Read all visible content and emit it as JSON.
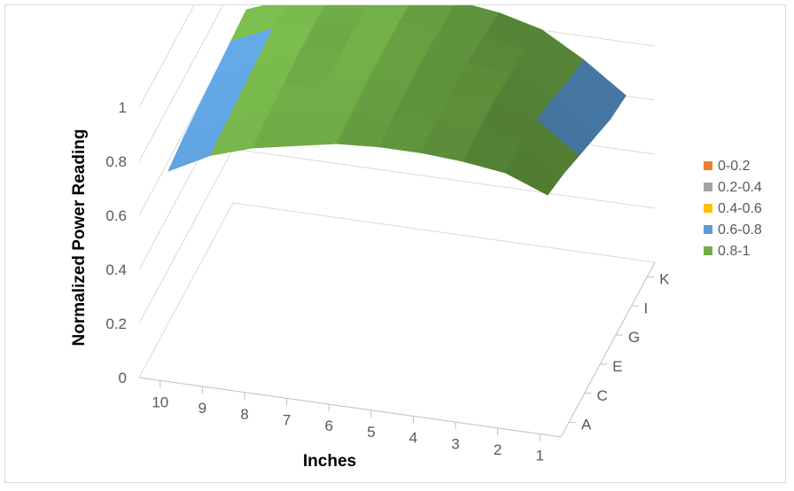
{
  "chart_data": {
    "type": "surface",
    "title": "",
    "xlabel": "Inches",
    "ylabel": "Normalized Power Reading",
    "x_categories": [
      "10",
      "9",
      "8",
      "7",
      "6",
      "5",
      "4",
      "3",
      "2",
      "1"
    ],
    "depth_categories": [
      "A",
      "C",
      "E",
      "G",
      "I",
      "K"
    ],
    "zlim": [
      0,
      1
    ],
    "z_ticks": [
      "0",
      "0.2",
      "0.4",
      "0.6",
      "0.8",
      "1"
    ],
    "grid": true,
    "legend_position": "right",
    "bands": [
      {
        "label": "0-0.2",
        "min": 0.0,
        "max": 0.2,
        "color": "#ED7D31"
      },
      {
        "label": "0.2-0.4",
        "min": 0.2,
        "max": 0.4,
        "color": "#A5A5A5"
      },
      {
        "label": "0.4-0.6",
        "min": 0.4,
        "max": 0.6,
        "color": "#FFC000"
      },
      {
        "label": "0.6-0.8",
        "min": 0.6,
        "max": 0.8,
        "color": "#5B9BD5"
      },
      {
        "label": "0.8-1",
        "min": 0.8,
        "max": 1.0,
        "color": "#70AD47"
      }
    ],
    "values_by_row": [
      {
        "row": "A",
        "values": [
          0.72,
          0.8,
          0.85,
          0.88,
          0.91,
          0.92,
          0.92,
          0.91,
          0.89,
          0.83
        ]
      },
      {
        "row": "C",
        "values": [
          0.74,
          0.81,
          0.86,
          0.89,
          0.92,
          0.93,
          0.93,
          0.92,
          0.89,
          0.8
        ]
      },
      {
        "row": "E",
        "values": [
          0.75,
          0.82,
          0.87,
          0.9,
          0.93,
          0.94,
          0.93,
          0.92,
          0.87,
          0.76
        ]
      },
      {
        "row": "G",
        "values": [
          0.76,
          0.83,
          0.88,
          0.9,
          0.93,
          0.94,
          0.93,
          0.91,
          0.84,
          0.72
        ]
      },
      {
        "row": "I",
        "values": [
          0.77,
          0.84,
          0.88,
          0.9,
          0.93,
          0.93,
          0.92,
          0.89,
          0.8,
          0.68
        ]
      },
      {
        "row": "K",
        "values": [
          0.78,
          0.84,
          0.88,
          0.9,
          0.92,
          0.92,
          0.9,
          0.86,
          0.77,
          0.66
        ]
      }
    ]
  }
}
